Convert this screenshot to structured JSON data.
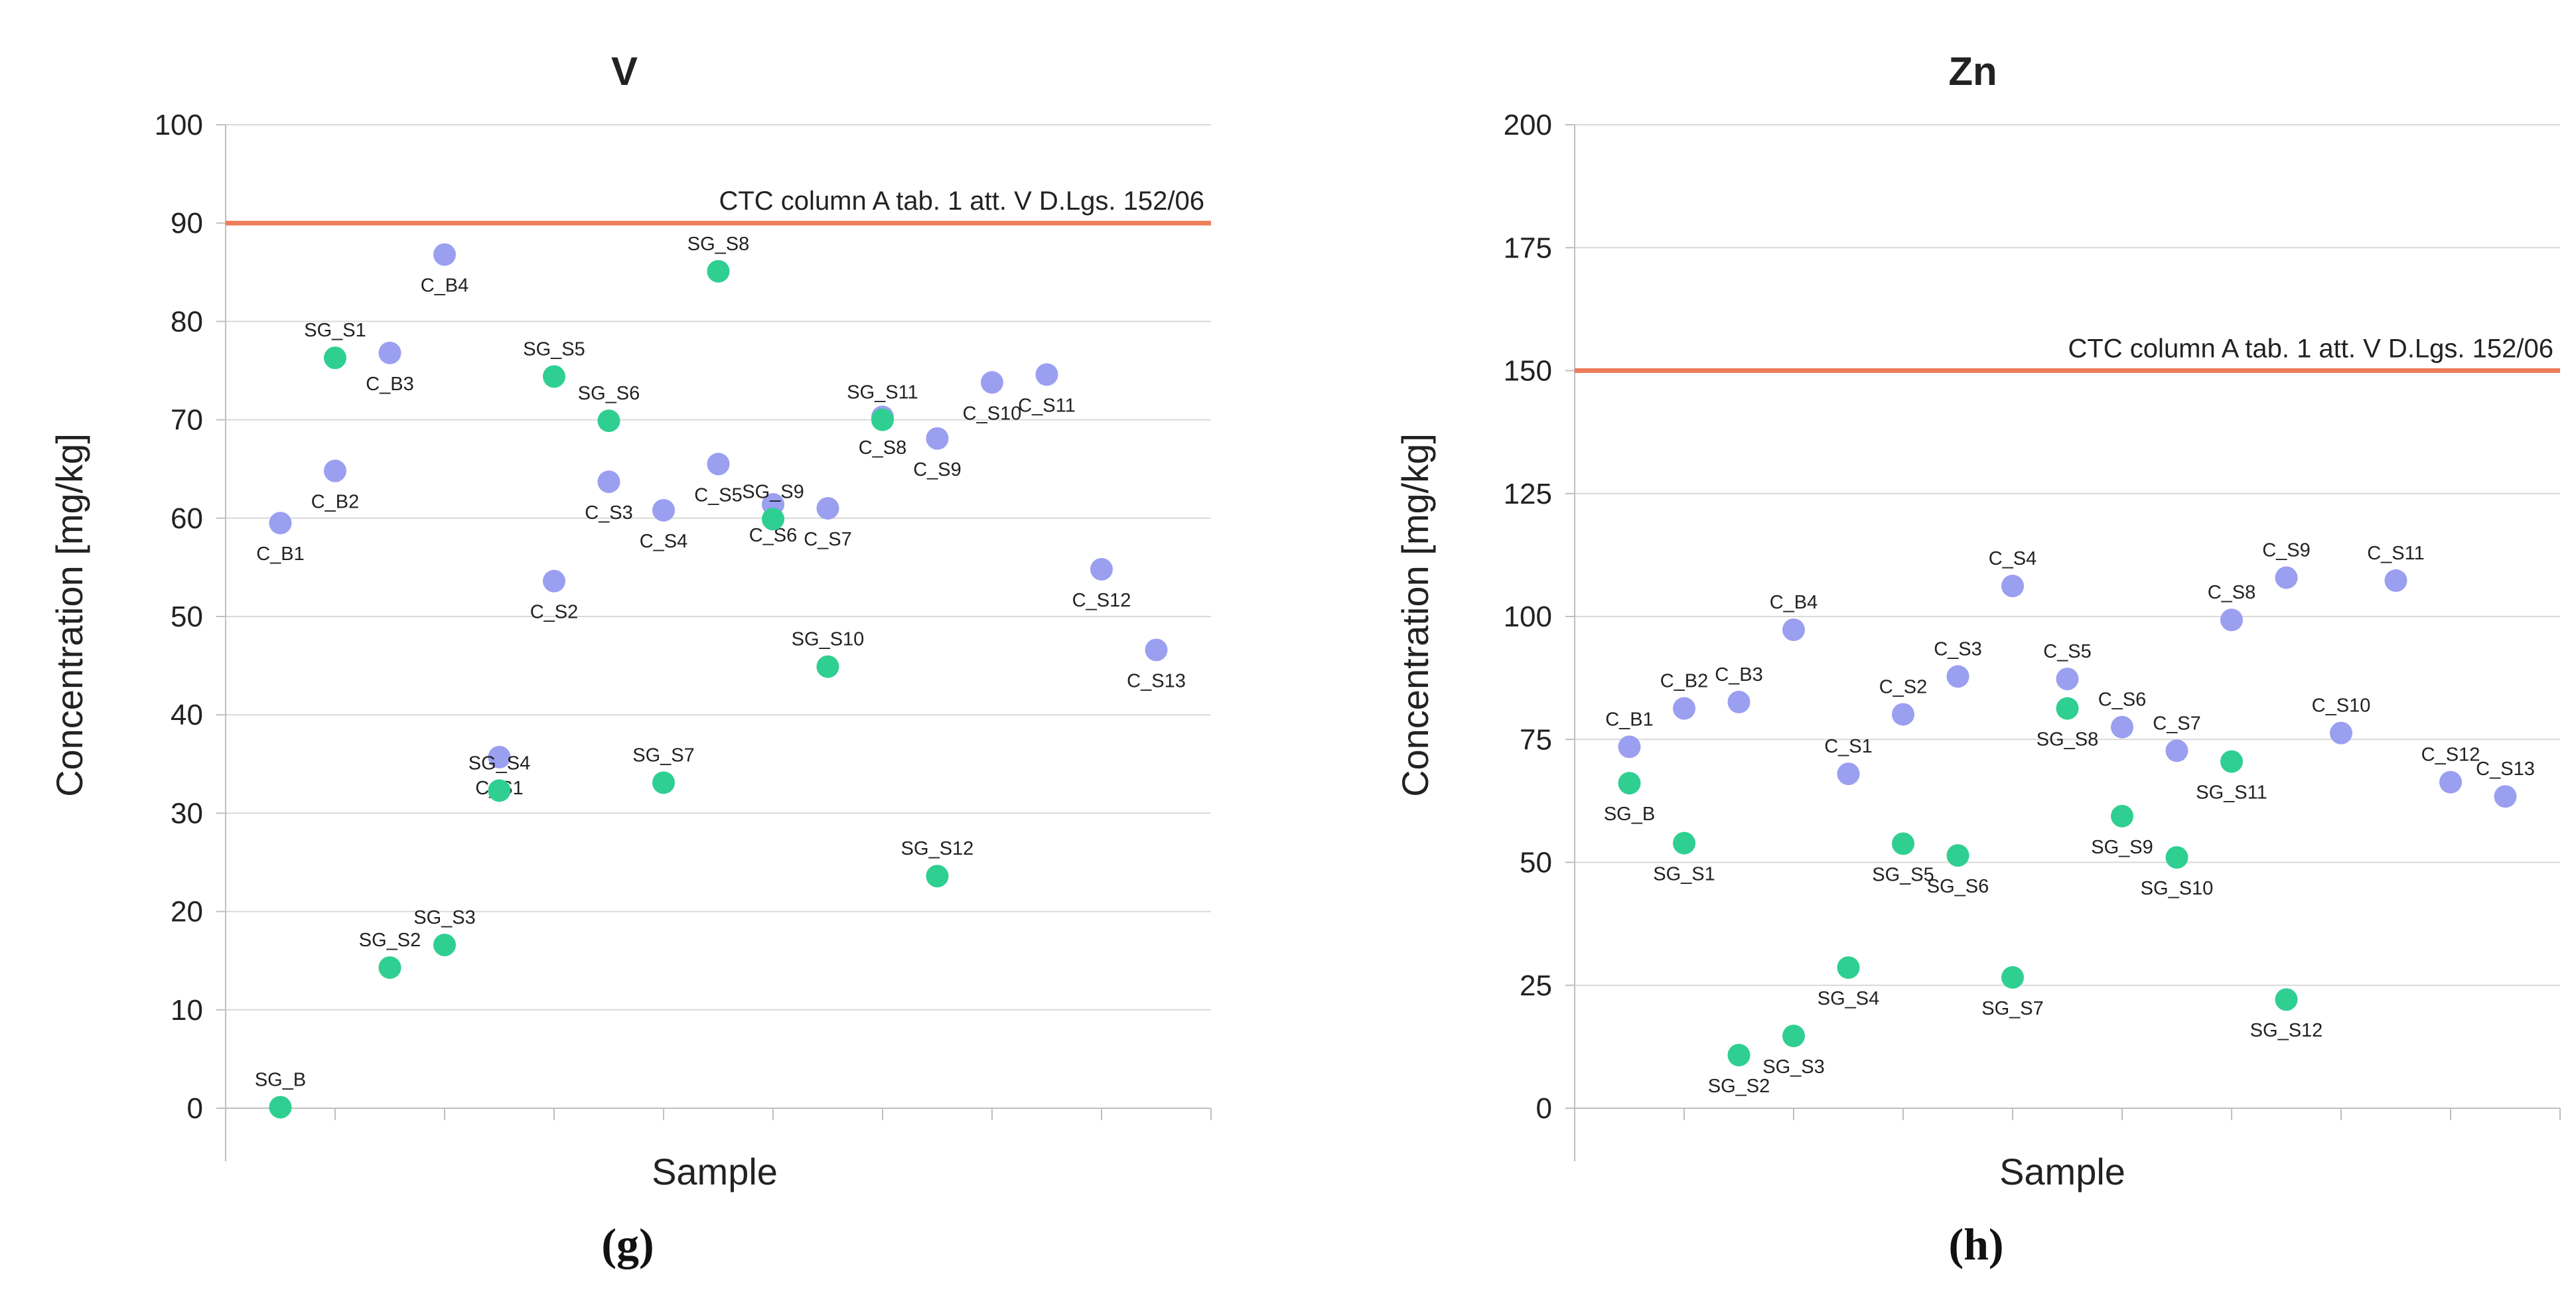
{
  "colors": {
    "c_series": "#9b9ff0",
    "sg_series": "#2fcf92",
    "threshold": "#ed7d5a",
    "grid": "#d9d9d9",
    "axis": "#bfbfbf"
  },
  "chart_data": [
    {
      "type": "scatter",
      "title": "V",
      "xlabel": "Sample",
      "ylabel": "Concentration [mg/kg]",
      "ylim": [
        0,
        100
      ],
      "yticks": [
        0,
        10,
        20,
        30,
        40,
        50,
        60,
        70,
        80,
        90,
        100
      ],
      "panel_tag": "(g)",
      "grid": true,
      "threshold": {
        "value": 90,
        "label": "CTC column A tab. 1 att. V D.Lgs. 152/06"
      },
      "points": [
        {
          "label": "C_B1",
          "x": 1,
          "y": 59.5,
          "series": "C",
          "lpos": "below"
        },
        {
          "label": "C_B2",
          "x": 2,
          "y": 64.8,
          "series": "C",
          "lpos": "below"
        },
        {
          "label": "C_B3",
          "x": 3,
          "y": 76.8,
          "series": "C",
          "lpos": "below"
        },
        {
          "label": "C_B4",
          "x": 4,
          "y": 86.8,
          "series": "C",
          "lpos": "below"
        },
        {
          "label": "C_S1",
          "x": 5,
          "y": 35.7,
          "series": "C",
          "lpos": "below"
        },
        {
          "label": "C_S2",
          "x": 6,
          "y": 53.6,
          "series": "C",
          "lpos": "below"
        },
        {
          "label": "C_S3",
          "x": 7,
          "y": 63.7,
          "series": "C",
          "lpos": "below"
        },
        {
          "label": "C_S4",
          "x": 8,
          "y": 60.8,
          "series": "C",
          "lpos": "below"
        },
        {
          "label": "C_S5",
          "x": 9,
          "y": 65.5,
          "series": "C",
          "lpos": "below"
        },
        {
          "label": "C_S6",
          "x": 10,
          "y": 61.4,
          "series": "C",
          "lpos": "below"
        },
        {
          "label": "C_S7",
          "x": 11,
          "y": 61.0,
          "series": "C",
          "lpos": "below"
        },
        {
          "label": "C_S8",
          "x": 12,
          "y": 70.3,
          "series": "C",
          "lpos": "below"
        },
        {
          "label": "C_S9",
          "x": 13,
          "y": 68.1,
          "series": "C",
          "lpos": "below"
        },
        {
          "label": "C_S10",
          "x": 14,
          "y": 73.8,
          "series": "C",
          "lpos": "below"
        },
        {
          "label": "C_S11",
          "x": 15,
          "y": 74.6,
          "series": "C",
          "lpos": "below"
        },
        {
          "label": "C_S12",
          "x": 16,
          "y": 54.8,
          "series": "C",
          "lpos": "below"
        },
        {
          "label": "C_S13",
          "x": 17,
          "y": 46.6,
          "series": "C",
          "lpos": "below"
        },
        {
          "label": "SG_B",
          "x": 1,
          "y": 0.1,
          "series": "SG",
          "lpos": "above"
        },
        {
          "label": "SG_S1",
          "x": 2,
          "y": 76.3,
          "series": "SG",
          "lpos": "above"
        },
        {
          "label": "SG_S2",
          "x": 3,
          "y": 14.3,
          "series": "SG",
          "lpos": "above"
        },
        {
          "label": "SG_S3",
          "x": 4,
          "y": 16.6,
          "series": "SG",
          "lpos": "above"
        },
        {
          "label": "SG_S4",
          "x": 5,
          "y": 32.3,
          "series": "SG",
          "lpos": "above"
        },
        {
          "label": "SG_S5",
          "x": 6,
          "y": 74.4,
          "series": "SG",
          "lpos": "above"
        },
        {
          "label": "SG_S6",
          "x": 7,
          "y": 69.9,
          "series": "SG",
          "lpos": "above"
        },
        {
          "label": "SG_S7",
          "x": 8,
          "y": 33.1,
          "series": "SG",
          "lpos": "above"
        },
        {
          "label": "SG_S8",
          "x": 9,
          "y": 85.1,
          "series": "SG",
          "lpos": "above"
        },
        {
          "label": "SG_S9",
          "x": 10,
          "y": 59.9,
          "series": "SG",
          "lpos": "above"
        },
        {
          "label": "SG_S10",
          "x": 11,
          "y": 44.9,
          "series": "SG",
          "lpos": "above"
        },
        {
          "label": "SG_S11",
          "x": 12,
          "y": 70.0,
          "series": "SG",
          "lpos": "above"
        },
        {
          "label": "SG_S12",
          "x": 13,
          "y": 23.6,
          "series": "SG",
          "lpos": "above"
        }
      ]
    },
    {
      "type": "scatter",
      "title": "Zn",
      "xlabel": "Sample",
      "ylabel": "Concentration [mg/kg]",
      "ylim": [
        0,
        200
      ],
      "yticks": [
        0,
        25,
        50,
        75,
        100,
        125,
        150,
        175,
        200
      ],
      "panel_tag": "(h)",
      "grid": true,
      "threshold": {
        "value": 150,
        "label": "CTC column A tab. 1 att. V D.Lgs. 152/06"
      },
      "points": [
        {
          "label": "C_B1",
          "x": 1,
          "y": 73.5,
          "series": "C",
          "lpos": "above"
        },
        {
          "label": "C_B2",
          "x": 2,
          "y": 81.3,
          "series": "C",
          "lpos": "above"
        },
        {
          "label": "C_B3",
          "x": 3,
          "y": 82.6,
          "series": "C",
          "lpos": "above"
        },
        {
          "label": "C_B4",
          "x": 4,
          "y": 97.3,
          "series": "C",
          "lpos": "above"
        },
        {
          "label": "C_S1",
          "x": 5,
          "y": 68.0,
          "series": "C",
          "lpos": "above"
        },
        {
          "label": "C_S2",
          "x": 6,
          "y": 80.1,
          "series": "C",
          "lpos": "above"
        },
        {
          "label": "C_S3",
          "x": 7,
          "y": 87.8,
          "series": "C",
          "lpos": "above"
        },
        {
          "label": "C_S4",
          "x": 8,
          "y": 106.2,
          "series": "C",
          "lpos": "above"
        },
        {
          "label": "C_S5",
          "x": 9,
          "y": 87.3,
          "series": "C",
          "lpos": "above"
        },
        {
          "label": "C_S6",
          "x": 10,
          "y": 77.5,
          "series": "C",
          "lpos": "above"
        },
        {
          "label": "C_S7",
          "x": 11,
          "y": 72.7,
          "series": "C",
          "lpos": "above"
        },
        {
          "label": "C_S8",
          "x": 12,
          "y": 99.3,
          "series": "C",
          "lpos": "above"
        },
        {
          "label": "C_S9",
          "x": 13,
          "y": 107.9,
          "series": "C",
          "lpos": "above"
        },
        {
          "label": "C_S10",
          "x": 14,
          "y": 76.3,
          "series": "C",
          "lpos": "above"
        },
        {
          "label": "C_S11",
          "x": 15,
          "y": 107.3,
          "series": "C",
          "lpos": "above"
        },
        {
          "label": "C_S12",
          "x": 16,
          "y": 66.3,
          "series": "C",
          "lpos": "above"
        },
        {
          "label": "C_S13",
          "x": 17,
          "y": 63.4,
          "series": "C",
          "lpos": "above"
        },
        {
          "label": "SG_B",
          "x": 1,
          "y": 66.1,
          "series": "SG",
          "lpos": "below"
        },
        {
          "label": "SG_S1",
          "x": 2,
          "y": 53.9,
          "series": "SG",
          "lpos": "below"
        },
        {
          "label": "SG_S2",
          "x": 3,
          "y": 10.8,
          "series": "SG",
          "lpos": "below"
        },
        {
          "label": "SG_S3",
          "x": 4,
          "y": 14.7,
          "series": "SG",
          "lpos": "below"
        },
        {
          "label": "SG_S4",
          "x": 5,
          "y": 28.6,
          "series": "SG",
          "lpos": "below"
        },
        {
          "label": "SG_S5",
          "x": 6,
          "y": 53.8,
          "series": "SG",
          "lpos": "below"
        },
        {
          "label": "SG_S6",
          "x": 7,
          "y": 51.4,
          "series": "SG",
          "lpos": "below"
        },
        {
          "label": "SG_S7",
          "x": 8,
          "y": 26.6,
          "series": "SG",
          "lpos": "below"
        },
        {
          "label": "SG_S8",
          "x": 9,
          "y": 81.3,
          "series": "SG",
          "lpos": "below"
        },
        {
          "label": "SG_S9",
          "x": 10,
          "y": 59.4,
          "series": "SG",
          "lpos": "below"
        },
        {
          "label": "SG_S10",
          "x": 11,
          "y": 51.0,
          "series": "SG",
          "lpos": "below"
        },
        {
          "label": "SG_S11",
          "x": 12,
          "y": 70.5,
          "series": "SG",
          "lpos": "below"
        },
        {
          "label": "SG_S12",
          "x": 13,
          "y": 22.1,
          "series": "SG",
          "lpos": "below"
        }
      ]
    }
  ]
}
